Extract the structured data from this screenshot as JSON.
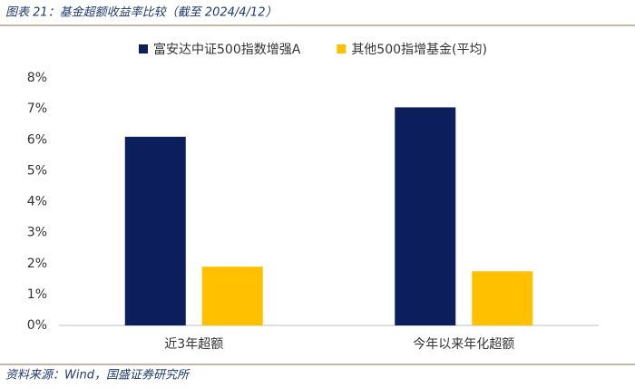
{
  "chart_data": {
    "type": "bar",
    "title": "图表 21：基金超额收益率比较（截至 2024/4/12）",
    "source": "资料来源：Wind，国盛证券研究所",
    "categories": [
      "近3年超额",
      "今年以来年化超额"
    ],
    "series": [
      {
        "name": "富安达中证500指数增强A",
        "color": "#0c1f5c",
        "values": [
          6.1,
          7.05
        ]
      },
      {
        "name": "其他500指增基金(平均)",
        "color": "#ffc000",
        "values": [
          1.9,
          1.75
        ]
      }
    ],
    "ylim": [
      0,
      8
    ],
    "yticks": [
      {
        "value": 0,
        "label": "0%"
      },
      {
        "value": 1,
        "label": "1%"
      },
      {
        "value": 2,
        "label": "2%"
      },
      {
        "value": 3,
        "label": "3%"
      },
      {
        "value": 4,
        "label": "4%"
      },
      {
        "value": 5,
        "label": "5%"
      },
      {
        "value": 6,
        "label": "6%"
      },
      {
        "value": 7,
        "label": "7%"
      },
      {
        "value": 8,
        "label": "8%"
      }
    ]
  }
}
